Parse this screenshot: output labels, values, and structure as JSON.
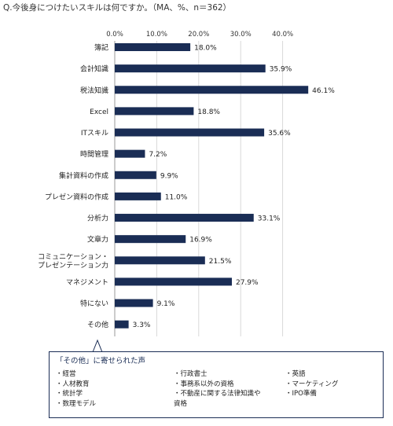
{
  "question": "Q.今後身につけたいスキルは何ですか。（MA、%、n＝362）",
  "chart_data": {
    "type": "bar",
    "orientation": "horizontal",
    "categories": [
      "簿記",
      "会計知識",
      "税法知識",
      "Excel",
      "ITスキル",
      "時間管理",
      "集計資料の作成",
      "プレゼン資料の作成",
      "分析力",
      "文章力",
      "コミュニケーション・\nプレゼンテーション力",
      "マネジメント",
      "特にない",
      "その他"
    ],
    "values": [
      18.0,
      35.9,
      46.1,
      18.8,
      35.6,
      7.2,
      9.9,
      11.0,
      33.1,
      16.9,
      21.5,
      27.9,
      9.1,
      3.3
    ],
    "value_labels": [
      "18.0%",
      "35.9%",
      "46.1%",
      "18.8%",
      "35.6%",
      "7.2%",
      "9.9%",
      "11.0%",
      "33.1%",
      "16.9%",
      "21.5%",
      "27.9%",
      "9.1%",
      "3.3%"
    ],
    "ticks": [
      "0.0%",
      "10.0%",
      "20.0%",
      "30.0%",
      "40.0%"
    ],
    "tick_values": [
      0,
      10,
      20,
      30,
      40
    ],
    "xlim": [
      0,
      48
    ],
    "bar_color": "#1a2d55",
    "grid": true
  },
  "callout": {
    "title": "「その他」に寄せられた声",
    "columns": [
      [
        "経営",
        "人材教育",
        "統計学",
        "数理モデル"
      ],
      [
        "行政書士",
        "事務系以外の資格",
        "不動産に関する法律知識や\n資格"
      ],
      [
        "英語",
        "マーケティング",
        "IPO準備"
      ]
    ],
    "border_color": "#1a2d55"
  }
}
